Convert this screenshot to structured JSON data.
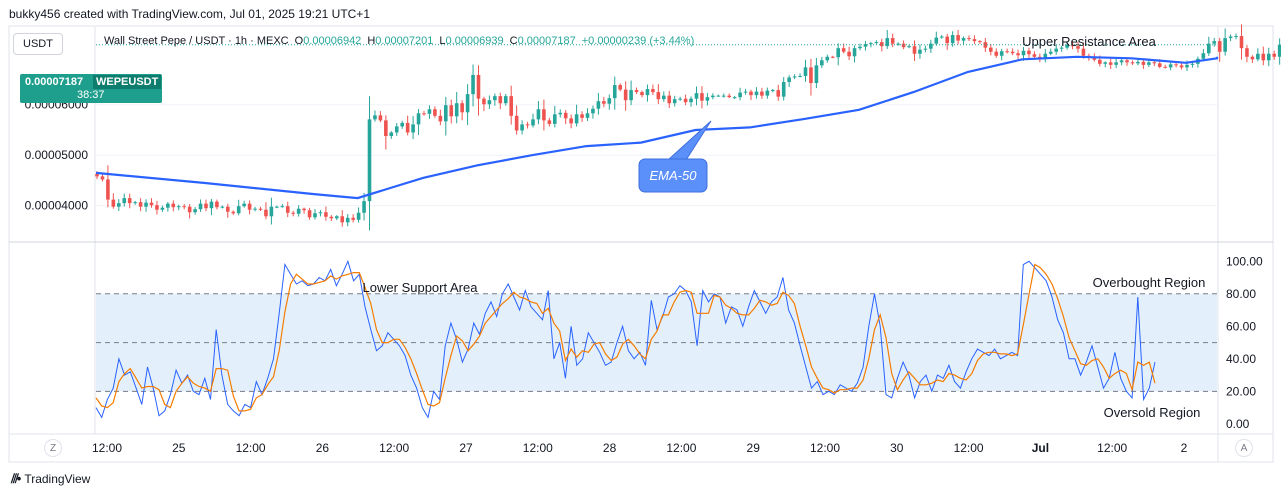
{
  "header": {
    "credit": "bukky456 created with TradingView.com, Jul 01, 2025 19:21 UTC+1",
    "currency": "USDT",
    "symbol_line": "Wall Street Pepe / USDT · 1h · MEXC",
    "open_label": "O",
    "open": "0.00006942",
    "high_label": "H",
    "high": "0.00007201",
    "low_label": "L",
    "low": "0.00006939",
    "close_label": "C",
    "close": "0.00007187",
    "change": "+0.00000239 (+3.44%)",
    "price_tag": "0.00007187",
    "price_tag_symbol": "WEPEUSDT",
    "countdown": "38:37"
  },
  "footer": {
    "logo_text": "TradingView",
    "left_button": "Z",
    "right_button": "A"
  },
  "colors": {
    "up": "#26a69a",
    "down": "#ef5350",
    "ema": "#2962ff",
    "k_line": "#2962ff",
    "d_line": "#f57c00",
    "band": "#e3f0fc",
    "callout": "#5b8ff9"
  },
  "chart_data": [
    {
      "type": "candlestick",
      "title": "",
      "price_axis_ticks": [
        "0.00004000",
        "0.00005000",
        "0.00006000"
      ],
      "time_axis_ticks": [
        "12:00",
        "25",
        "12:00",
        "26",
        "12:00",
        "27",
        "12:00",
        "28",
        "12:00",
        "29",
        "12:00",
        "30",
        "12:00",
        "Jul",
        "12:00",
        "2"
      ],
      "ylim": [
        3.32e-05,
        7.52e-05
      ],
      "last_price": 7.187e-05,
      "annotations": [
        "Upper Resistance Area",
        "EMA-50"
      ],
      "series": [
        {
          "name": "EMA-50",
          "x": [
            0,
            20,
            40,
            48,
            54,
            60,
            70,
            80,
            90,
            100,
            110,
            120,
            130,
            140,
            150,
            160,
            170,
            180,
            190,
            200,
            210,
            215
          ],
          "values": [
            4.65e-05,
            4.45e-05,
            4.23e-05,
            4.15e-05,
            4.35e-05,
            4.55e-05,
            4.8e-05,
            5e-05,
            5.18e-05,
            5.25e-05,
            5.5e-05,
            5.55e-05,
            5.72e-05,
            5.9e-05,
            6.25e-05,
            6.65e-05,
            6.9e-05,
            6.95e-05,
            6.92e-05,
            6.83e-05,
            6.92e-05,
            6.95e-05
          ]
        }
      ],
      "candles_close": [
        4.58e-05,
        4.52e-05,
        4.12e-05,
        3.98e-05,
        4.05e-05,
        4.15e-05,
        4.05e-05,
        4.07e-05,
        3.98e-05,
        4.06e-05,
        4.01e-05,
        3.92e-05,
        3.96e-05,
        4.04e-05,
        3.97e-05,
        3.99e-05,
        3.98e-05,
        3.87e-05,
        3.93e-05,
        4.04e-05,
        3.95e-05,
        4.08e-05,
        3.97e-05,
        3.98e-05,
        3.88e-05,
        3.85e-05,
        3.99e-05,
        4.04e-05,
        3.92e-05,
        3.94e-05,
        3.92e-05,
        3.79e-05,
        3.98e-05,
        3.98e-05,
        3.99e-05,
        3.86e-05,
        3.84e-05,
        3.94e-05,
        3.91e-05,
        3.77e-05,
        3.85e-05,
        3.87e-05,
        3.78e-05,
        3.75e-05,
        3.79e-05,
        3.67e-05,
        3.76e-05,
        3.72e-05,
        3.86e-05,
        4.09e-05,
        5.71e-05,
        5.79e-05,
        5.69e-05,
        5.38e-05,
        5.45e-05,
        5.57e-05,
        5.64e-05,
        5.45e-05,
        5.61e-05,
        5.83e-05,
        5.82e-05,
        5.91e-05,
        5.78e-05,
        5.67e-05,
        5.99e-05,
        5.77e-05,
        6.03e-05,
        5.85e-05,
        6.21e-05,
        6.59e-05,
        6.12e-05,
        6.01e-05,
        6.09e-05,
        6.17e-05,
        6.03e-05,
        6.17e-05,
        5.78e-05,
        5.49e-05,
        5.61e-05,
        5.59e-05,
        5.71e-05,
        5.91e-05,
        5.69e-05,
        5.62e-05,
        5.81e-05,
        5.84e-05,
        5.73e-05,
        5.63e-05,
        5.81e-05,
        5.74e-05,
        5.83e-05,
        5.92e-05,
        6.07e-05,
        6.02e-05,
        6.13e-05,
        6.39e-05,
        6.3e-05,
        6.09e-05,
        6.29e-05,
        6.25e-05,
        6.19e-05,
        6.31e-05,
        6.25e-05,
        6.11e-05,
        6.18e-05,
        6.03e-05,
        6.11e-05,
        6.12e-05,
        6.05e-05,
        6.12e-05,
        6.23e-05,
        6.08e-05,
        6.15e-05,
        6.18e-05,
        6.18e-05,
        6.18e-05,
        6.15e-05,
        6.15e-05,
        6.24e-05,
        6.26e-05,
        6.19e-05,
        6.26e-05,
        6.18e-05,
        6.28e-05,
        6.29e-05,
        6.16e-05,
        6.45e-05,
        6.54e-05,
        6.56e-05,
        6.57e-05,
        6.74e-05,
        6.43e-05,
        6.78e-05,
        6.88e-05,
        6.95e-05,
        6.94e-05,
        7.12e-05,
        7.05e-05,
        6.96e-05,
        7.12e-05,
        7.15e-05,
        7.2e-05,
        7.22e-05,
        7.24e-05,
        7.16e-05,
        7.32e-05,
        7.21e-05,
        7.21e-05,
        7.14e-05,
        7.16e-05,
        7.01e-05,
        7.09e-05,
        7.11e-05,
        7.21e-05,
        7.33e-05,
        7.35e-05,
        7.22e-05,
        7.38e-05,
        7.27e-05,
        7.32e-05,
        7.3e-05,
        7.26e-05,
        7.24e-05,
        7.13e-05,
        7.05e-05,
        6.97e-05,
        7.06e-05,
        7.05e-05,
        7.02e-05,
        6.98e-05,
        7.07e-05,
        7e-05,
        6.95e-05,
        6.91e-05,
        7.01e-05,
        7.05e-05,
        7.11e-05,
        7.13e-05,
        7.19e-05,
        7.16e-05,
        7.11e-05,
        6.97e-05,
        6.94e-05,
        6.89e-05,
        6.81e-05,
        6.84e-05,
        6.79e-05,
        6.84e-05,
        6.88e-05,
        6.84e-05,
        6.82e-05,
        6.85e-05,
        6.79e-05,
        6.84e-05,
        6.82e-05,
        6.75e-05,
        6.74e-05,
        6.8e-05,
        6.78e-05,
        6.74e-05,
        6.79e-05,
        6.81e-05,
        6.91e-05,
        7.02e-05,
        7.21e-05,
        7.26e-05,
        7.05e-05,
        7.32e-05,
        7.35e-05,
        7.36e-05,
        7.12e-05,
        6.95e-05,
        6.9e-05,
        7.01e-05,
        6.88e-05,
        7.01e-05,
        6.95e-05,
        7.19e-05,
        7.06e-05,
        7.187e-05
      ]
    },
    {
      "type": "line",
      "title": "",
      "y_axis_ticks": [
        "100.00",
        "80.00",
        "60.00",
        "40.00",
        "20.00",
        "0.00"
      ],
      "ylim": [
        -5,
        110
      ],
      "levels": [
        80,
        50,
        20
      ],
      "band": [
        20,
        80
      ],
      "annotations": [
        "Lower Support Area",
        "Overbought Region",
        "Oversold Region"
      ],
      "series": [
        {
          "name": "%K",
          "values": [
            10,
            4,
            15,
            22,
            40,
            30,
            32,
            22,
            12,
            35,
            22,
            5,
            8,
            18,
            33,
            25,
            30,
            20,
            18,
            28,
            15,
            58,
            30,
            12,
            8,
            5,
            12,
            10,
            26,
            18,
            28,
            40,
            68,
            98,
            92,
            86,
            88,
            85,
            86,
            90,
            88,
            95,
            85,
            92,
            100,
            88,
            92,
            72,
            58,
            45,
            48,
            56,
            52,
            48,
            42,
            30,
            22,
            10,
            4,
            20,
            15,
            48,
            62,
            52,
            38,
            46,
            62,
            55,
            68,
            75,
            66,
            80,
            86,
            78,
            70,
            82,
            72,
            68,
            64,
            82,
            40,
            50,
            28,
            60,
            36,
            40,
            56,
            50,
            44,
            36,
            38,
            50,
            60,
            45,
            40,
            44,
            36,
            76,
            58,
            66,
            78,
            80,
            85,
            82,
            75,
            48,
            82,
            75,
            80,
            78,
            62,
            72,
            70,
            60,
            72,
            82,
            75,
            68,
            75,
            78,
            90,
            70,
            62,
            48,
            35,
            22,
            26,
            18,
            20,
            18,
            24,
            22,
            20,
            25,
            35,
            60,
            80,
            60,
            18,
            16,
            28,
            38,
            30,
            16,
            26,
            30,
            20,
            30,
            28,
            36,
            26,
            22,
            32,
            40,
            46,
            44,
            42,
            46,
            40,
            42,
            44,
            42,
            98,
            100,
            96,
            92,
            88,
            78,
            64,
            56,
            40,
            40,
            30,
            38,
            48,
            35,
            22,
            28,
            44,
            28,
            20,
            16,
            78,
            15,
            22,
            38
          ]
        },
        {
          "name": "%D",
          "values": [
            16,
            11,
            10,
            13,
            26,
            31,
            34,
            28,
            22,
            23,
            23,
            21,
            12,
            10,
            20,
            25,
            29,
            25,
            23,
            22,
            20,
            34,
            34,
            33,
            17,
            8,
            8,
            9,
            16,
            18,
            24,
            29,
            45,
            69,
            86,
            92,
            89,
            86,
            86,
            87,
            88,
            91,
            89,
            91,
            92,
            93,
            93,
            84,
            74,
            58,
            50,
            50,
            52,
            52,
            47,
            40,
            31,
            21,
            12,
            11,
            13,
            28,
            42,
            54,
            51,
            45,
            49,
            54,
            62,
            66,
            70,
            74,
            77,
            81,
            78,
            77,
            75,
            74,
            68,
            71,
            62,
            57,
            39,
            46,
            41,
            45,
            44,
            49,
            50,
            43,
            39,
            41,
            49,
            52,
            48,
            43,
            40,
            52,
            57,
            67,
            67,
            75,
            81,
            82,
            81,
            68,
            68,
            68,
            79,
            78,
            73,
            71,
            68,
            67,
            67,
            71,
            76,
            75,
            73,
            74,
            81,
            79,
            74,
            60,
            48,
            35,
            28,
            22,
            21,
            19,
            21,
            21,
            22,
            22,
            27,
            40,
            58,
            67,
            53,
            31,
            21,
            27,
            32,
            28,
            24,
            24,
            25,
            27,
            26,
            31,
            30,
            28,
            27,
            31,
            39,
            43,
            44,
            44,
            43,
            43,
            42,
            43,
            61,
            80,
            98,
            96,
            92,
            86,
            77,
            66,
            53,
            45,
            37,
            36,
            39,
            40,
            35,
            28,
            31,
            33,
            31,
            21,
            38,
            36,
            38,
            25
          ]
        }
      ]
    }
  ]
}
